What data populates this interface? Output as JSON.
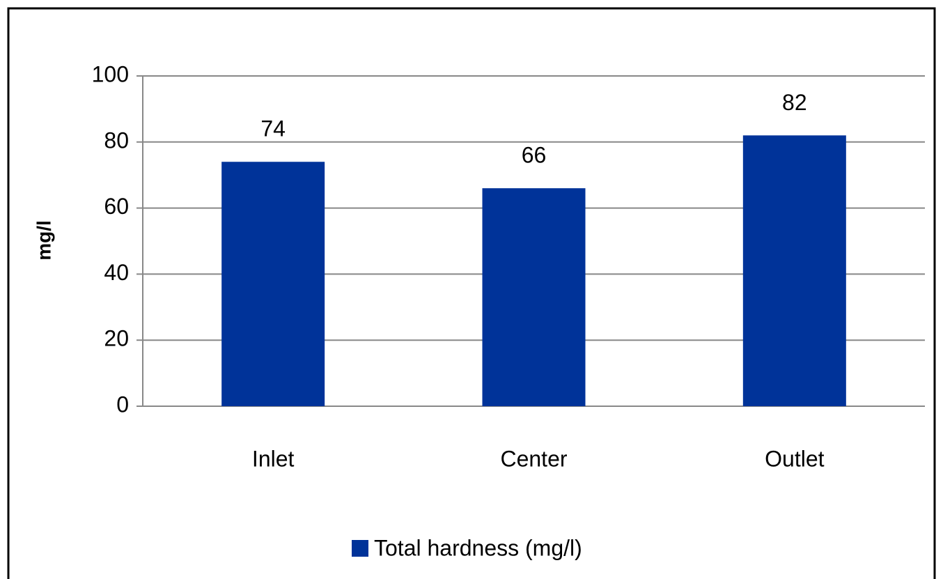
{
  "chart_data": {
    "type": "bar",
    "categories": [
      "Inlet",
      "Center",
      "Outlet"
    ],
    "series": [
      {
        "name": "Total hardness (mg/l)",
        "color": "#003399",
        "values": [
          74,
          66,
          82
        ]
      }
    ],
    "y_label": "mg/l",
    "ylim": [
      0,
      100
    ],
    "yticks": [
      0,
      20,
      40,
      60,
      80,
      100
    ],
    "grid": true,
    "legend": "bottom"
  }
}
